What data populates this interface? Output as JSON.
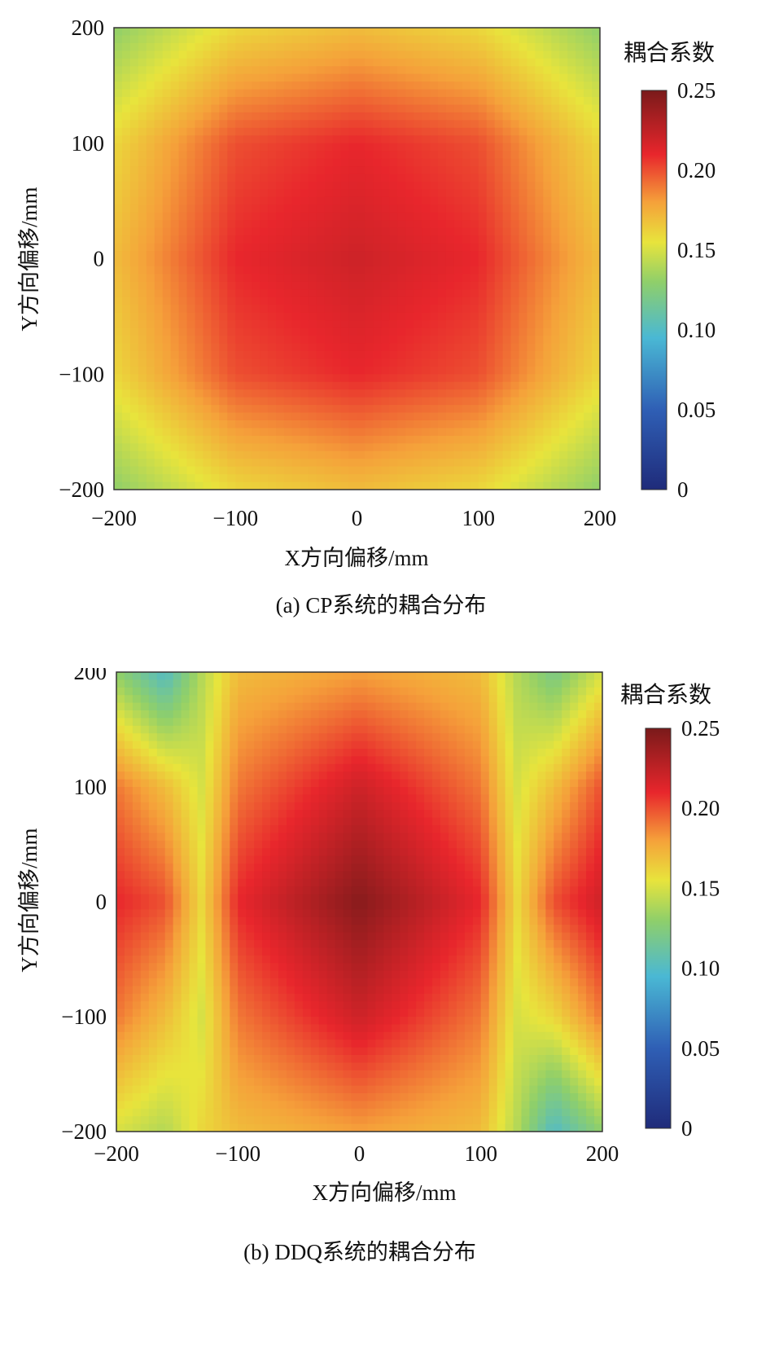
{
  "chart_data": [
    {
      "type": "heatmap",
      "panel": "a",
      "caption": "(a) CP系统的耦合分布",
      "xlabel": "X方向偏移/mm",
      "ylabel": "Y方向偏移/mm",
      "xlim": [
        -200,
        200
      ],
      "ylim": [
        -200,
        200
      ],
      "xticks": [
        "−200",
        "−100",
        "0",
        "100",
        "200"
      ],
      "yticks": [
        "200",
        "100",
        "0",
        "−100",
        "−200"
      ],
      "colorbar": {
        "title": "耦合系数",
        "range": [
          0,
          0.25
        ],
        "ticks": [
          "0.25",
          "0.20",
          "0.15",
          "0.10",
          "0.05",
          "0"
        ],
        "colormap": "jet"
      },
      "grid": false,
      "field": {
        "x": [
          -200,
          -100,
          0,
          100,
          200
        ],
        "y": [
          200,
          100,
          0,
          -100,
          -200
        ],
        "z": [
          [
            0.13,
            0.16,
            0.17,
            0.16,
            0.13
          ],
          [
            0.16,
            0.2,
            0.21,
            0.2,
            0.16
          ],
          [
            0.17,
            0.21,
            0.22,
            0.21,
            0.17
          ],
          [
            0.16,
            0.2,
            0.21,
            0.2,
            0.16
          ],
          [
            0.13,
            0.16,
            0.17,
            0.16,
            0.13
          ]
        ]
      }
    },
    {
      "type": "heatmap",
      "panel": "b",
      "caption": "(b) DDQ系统的耦合分布",
      "xlabel": "X方向偏移/mm",
      "ylabel": "Y方向偏移/mm",
      "xlim": [
        -200,
        200
      ],
      "ylim": [
        -200,
        200
      ],
      "xticks": [
        "−200",
        "−100",
        "0",
        "100",
        "200"
      ],
      "yticks": [
        "200",
        "100",
        "0",
        "−100",
        "−200"
      ],
      "colorbar": {
        "title": "耦合系数",
        "range": [
          0,
          0.25
        ],
        "ticks": [
          "0.25",
          "0.20",
          "0.15",
          "0.10",
          "0.05",
          "0"
        ],
        "colormap": "jet"
      },
      "grid": false,
      "field": {
        "x": [
          -200,
          -160,
          -130,
          -100,
          0,
          100,
          130,
          160,
          200
        ],
        "y": [
          200,
          100,
          0,
          -100,
          -200
        ],
        "z": [
          [
            0.13,
            0.1,
            0.14,
            0.17,
            0.18,
            0.17,
            0.14,
            0.12,
            0.15
          ],
          [
            0.19,
            0.17,
            0.15,
            0.19,
            0.22,
            0.19,
            0.15,
            0.17,
            0.2
          ],
          [
            0.21,
            0.2,
            0.16,
            0.21,
            0.245,
            0.21,
            0.16,
            0.2,
            0.22
          ],
          [
            0.19,
            0.17,
            0.15,
            0.19,
            0.22,
            0.19,
            0.15,
            0.16,
            0.19
          ],
          [
            0.15,
            0.14,
            0.16,
            0.17,
            0.18,
            0.17,
            0.14,
            0.1,
            0.13
          ]
        ]
      }
    }
  ]
}
